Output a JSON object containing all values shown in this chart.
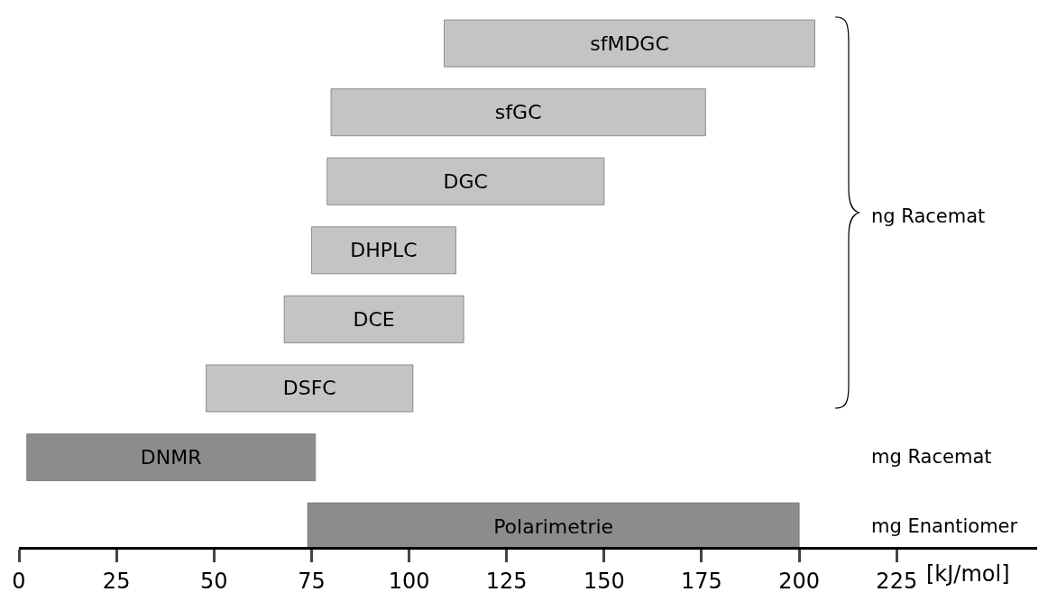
{
  "chart_data": {
    "type": "bar",
    "orientation": "horizontal",
    "xlabel": "[kJ/mol]",
    "categories": [
      "sfMDGC",
      "sfGC",
      "DGC",
      "DHPLC",
      "DCE",
      "DSFC",
      "DNMR",
      "Polarimetrie"
    ],
    "base": [
      109,
      80,
      79,
      75,
      68,
      48,
      2,
      74
    ],
    "values": [
      95,
      96,
      71,
      37,
      46,
      53,
      74,
      126
    ],
    "colors": [
      "#c4c4c4",
      "#c4c4c4",
      "#c4c4c4",
      "#c4c4c4",
      "#c4c4c4",
      "#c4c4c4",
      "#8c8c8c",
      "#8c8c8c"
    ],
    "xlim": [
      0,
      261
    ],
    "xticks": [
      0,
      25,
      50,
      75,
      100,
      125,
      150,
      175,
      200,
      225
    ],
    "tick_labels": "x",
    "annotations": [
      "ng Racemat",
      "mg Racemat",
      "mg Enantiomer"
    ]
  }
}
